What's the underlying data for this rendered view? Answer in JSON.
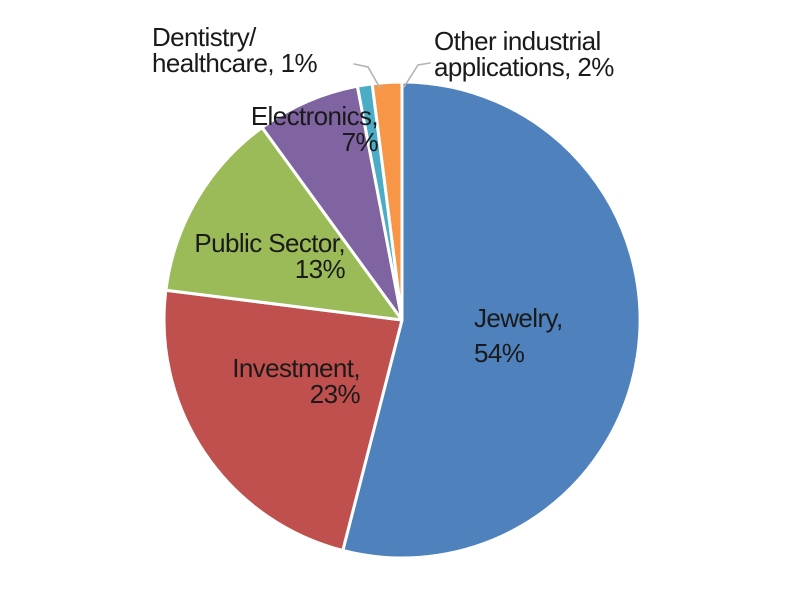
{
  "chart_data": {
    "type": "pie",
    "title": "",
    "categories": [
      "Jewelry",
      "Investment",
      "Public Sector",
      "Electronics",
      "Dentistry/healthcare",
      "Other industrial applications"
    ],
    "values": [
      54,
      23,
      13,
      7,
      1,
      2
    ],
    "unit": "%",
    "colors": [
      "#4F81BD",
      "#C0504D",
      "#9BBB59",
      "#8064A2",
      "#4BACC6",
      "#F79646"
    ],
    "slice_ids": [
      "jewelry",
      "investment",
      "public-sector",
      "electronics",
      "dentistry-healthcare",
      "other-industrial-applications"
    ],
    "start_angle_deg": 0,
    "direction": "clockwise",
    "legend": "none",
    "label_format": "category, percent",
    "slice_border_color": "#ffffff",
    "leader_line_color": "#b3b3b3",
    "label_text_color": "#1a1a1a"
  },
  "labels": {
    "jewelry": {
      "line1": "Jewelry,",
      "line2": "54%"
    },
    "investment": {
      "line1": "Investment,",
      "line2": "23%"
    },
    "public": {
      "line1": "Public Sector,",
      "line2": "13%"
    },
    "electronics": {
      "line1": "Electronics,",
      "line2": "7%"
    },
    "dentistry": {
      "line1": "Dentistry/",
      "line2": "healthcare, 1%"
    },
    "other": {
      "line1": "Other industrial",
      "line2": "applications, 2%"
    }
  }
}
